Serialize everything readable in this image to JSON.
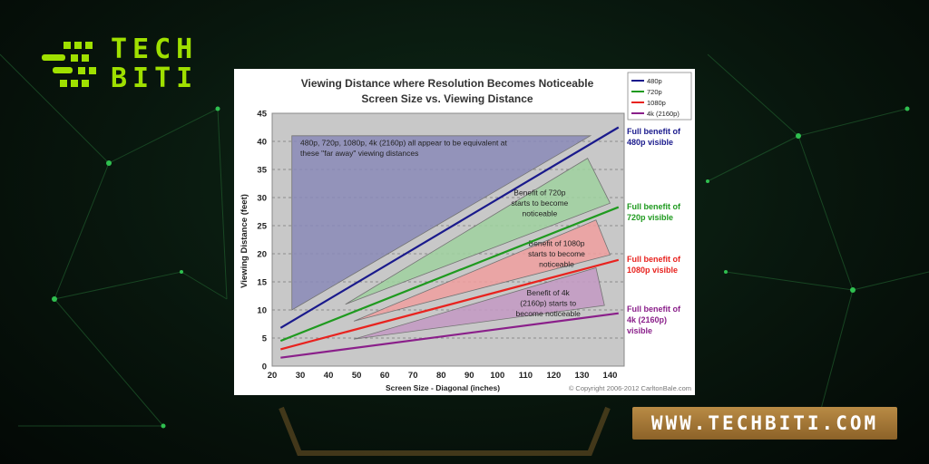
{
  "brand": {
    "logo_line1": "TECH",
    "logo_line2": "BITI",
    "logo_color": "#9fe000",
    "website": "WWW.TECHBITI.COM",
    "badge_color": "#a97a3a"
  },
  "chart_data": {
    "type": "line",
    "title": "Viewing Distance where Resolution Becomes Noticeable",
    "subtitle": "Screen Size vs. Viewing Distance",
    "xlabel": "Screen Size - Diagonal (inches)",
    "ylabel": "Viewing Distance (feet)",
    "xlim": [
      20,
      145
    ],
    "ylim": [
      0,
      45
    ],
    "x_ticks": [
      20,
      30,
      40,
      50,
      60,
      70,
      80,
      90,
      100,
      110,
      120,
      130,
      140
    ],
    "y_ticks": [
      0,
      5,
      10,
      15,
      20,
      25,
      30,
      35,
      40,
      45
    ],
    "grid": "horizontal dashed",
    "legend_position": "top-right",
    "copyright": "© Copyright 2006-2012 CarltonBale.com",
    "series": [
      {
        "name": "480p",
        "color": "#1a1a8c",
        "x": [
          23,
          143
        ],
        "y": [
          6.8,
          42.5
        ],
        "end_label": "Full benefit of 480p visible"
      },
      {
        "name": "720p",
        "color": "#1f9a1f",
        "x": [
          23,
          143
        ],
        "y": [
          4.5,
          28.3
        ],
        "end_label": "Full benefit of 720p visible"
      },
      {
        "name": "1080p",
        "color": "#e8231f",
        "x": [
          23,
          143
        ],
        "y": [
          3.0,
          18.9
        ],
        "end_label": "Full benefit of 1080p visible"
      },
      {
        "name": "4k (2160p)",
        "color": "#8a1f8a",
        "x": [
          23,
          143
        ],
        "y": [
          1.5,
          9.4
        ],
        "end_label": "Full benefit of 4k (2160p) visible"
      }
    ],
    "regions": [
      {
        "label": "480p, 720p, 1080p, 4k (2160p) all appear to be equivalent at these \"far away\" viewing distances",
        "fill": "#8a8ab8",
        "points": [
          [
            27,
            41
          ],
          [
            133,
            41
          ],
          [
            27,
            10
          ]
        ]
      },
      {
        "label": "Benefit of 720p starts to become noticeable",
        "fill": "#9fd29f",
        "points": [
          [
            46,
            11
          ],
          [
            132,
            37
          ],
          [
            140,
            29
          ]
        ]
      },
      {
        "label": "Benefit of 1080p starts to become noticeable",
        "fill": "#f0a0a0",
        "points": [
          [
            49,
            8
          ],
          [
            135,
            26
          ],
          [
            140,
            19.8
          ]
        ]
      },
      {
        "label": "Benefit of 4k (2160p) starts to become noticeable",
        "fill": "#c49ac4",
        "points": [
          [
            49,
            4.8
          ],
          [
            135,
            17.5
          ],
          [
            138,
            10.8
          ]
        ]
      }
    ]
  }
}
